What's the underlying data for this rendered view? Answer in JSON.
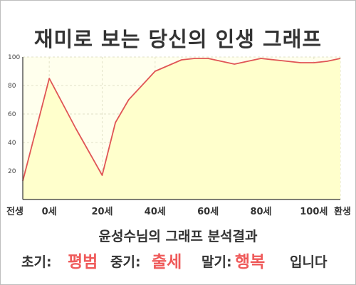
{
  "title": "재미로 보는 당신의 인생 그래프",
  "subtitle": "윤성수님의 그래프 분석결과",
  "result": {
    "early_label": "초기:",
    "early_value": "평범",
    "middle_label": "중기:",
    "middle_value": "출세",
    "late_label": "말기:",
    "late_value": "행복",
    "ending": "입니다"
  },
  "colors": {
    "area_fill": "#ffffcc",
    "line": "#e05555",
    "accent_text": "#ef5a5a",
    "grid": "#e2e2c8"
  },
  "chart_data": {
    "type": "area",
    "title": "재미로 보는 당신의 인생 그래프",
    "xlabel": "",
    "ylabel": "",
    "ylim": [
      0,
      100
    ],
    "yticks": [
      20,
      40,
      60,
      80,
      100
    ],
    "x_tick_labels": [
      "전생",
      "0세",
      "20세",
      "40세",
      "60세",
      "80세",
      "100세",
      "환생"
    ],
    "grid": true,
    "series": [
      {
        "x": [
          -10,
          0,
          10,
          20,
          25,
          30,
          35,
          40,
          45,
          50,
          55,
          60,
          65,
          70,
          75,
          80,
          85,
          90,
          95,
          100,
          105,
          110
        ],
        "values": [
          13,
          85,
          50,
          17,
          54,
          70,
          80,
          90,
          94,
          98,
          99,
          99,
          97,
          95,
          97,
          99,
          98,
          97,
          96,
          96,
          97,
          99
        ]
      }
    ]
  }
}
